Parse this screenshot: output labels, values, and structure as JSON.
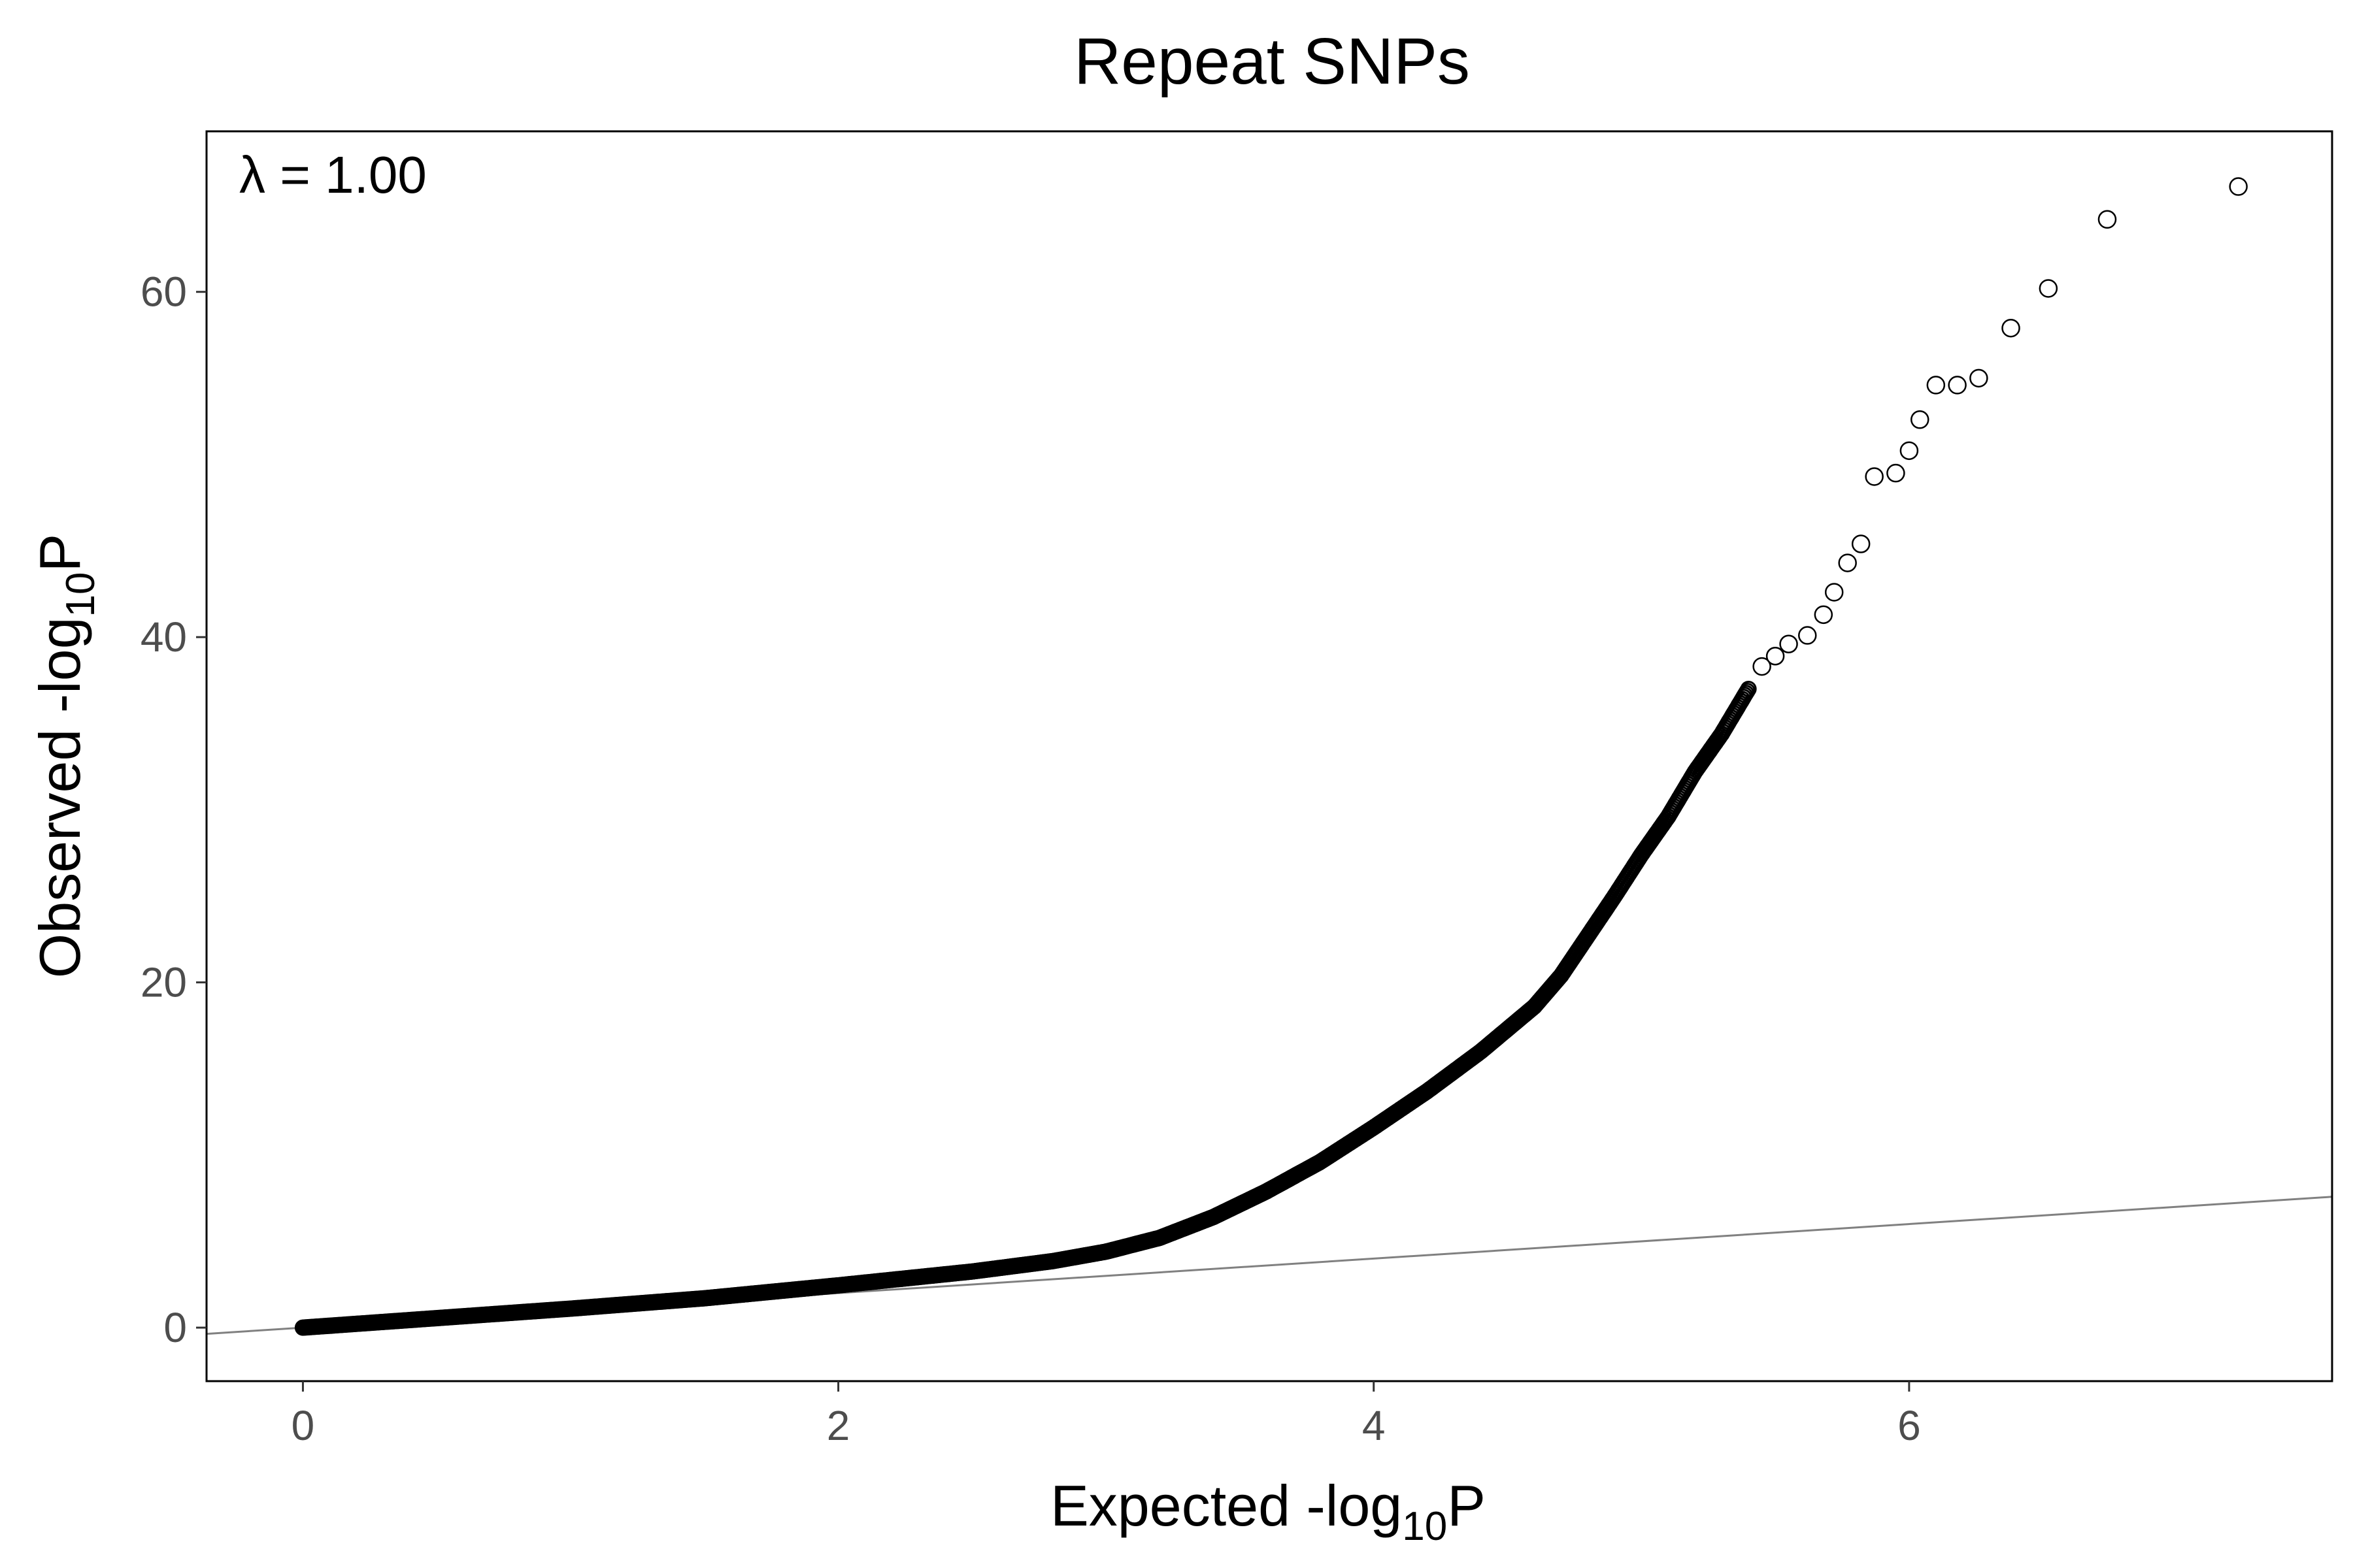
{
  "chart_data": {
    "type": "scatter",
    "title": "Repeat SNPs",
    "xlabel": {
      "pre": "Expected -log",
      "sub": "10",
      "post": "P"
    },
    "ylabel": {
      "pre": "Observed -log",
      "sub": "10",
      "post": "P"
    },
    "xlim": [
      -0.36,
      7.58
    ],
    "ylim": [
      -3.1,
      69.3
    ],
    "x_ticks": [
      0,
      2,
      4,
      6
    ],
    "x_tick_labels": [
      "0",
      "2",
      "4",
      "6"
    ],
    "y_ticks": [
      0,
      20,
      40,
      60
    ],
    "y_tick_labels": [
      "0",
      "20",
      "40",
      "60"
    ],
    "grid": false,
    "legend": "none",
    "annotation": "λ = 1.00",
    "reference_line": {
      "label": "y = x",
      "color": "#808080"
    },
    "point_style": {
      "shape": "open-circle",
      "color": "#000000"
    },
    "curve_points": [
      [
        0.0,
        0.0
      ],
      [
        0.5,
        0.55
      ],
      [
        1.0,
        1.1
      ],
      [
        1.5,
        1.7
      ],
      [
        2.0,
        2.45
      ],
      [
        2.5,
        3.25
      ],
      [
        2.8,
        3.85
      ],
      [
        3.0,
        4.4
      ],
      [
        3.2,
        5.2
      ],
      [
        3.4,
        6.4
      ],
      [
        3.6,
        7.9
      ],
      [
        3.8,
        9.6
      ],
      [
        4.0,
        11.6
      ],
      [
        4.2,
        13.7
      ],
      [
        4.4,
        16.0
      ],
      [
        4.6,
        18.6
      ],
      [
        4.7,
        20.4
      ],
      [
        4.8,
        22.7
      ],
      [
        4.9,
        25.0
      ],
      [
        5.0,
        27.4
      ],
      [
        5.1,
        29.6
      ],
      [
        5.2,
        32.2
      ],
      [
        5.3,
        34.4
      ],
      [
        5.4,
        37.0
      ]
    ],
    "tail_points": [
      [
        5.45,
        38.3
      ],
      [
        5.5,
        38.9
      ],
      [
        5.55,
        39.6
      ],
      [
        5.62,
        40.1
      ],
      [
        5.68,
        41.3
      ],
      [
        5.72,
        42.6
      ],
      [
        5.77,
        44.3
      ],
      [
        5.82,
        45.4
      ],
      [
        5.87,
        49.3
      ],
      [
        5.95,
        49.5
      ],
      [
        6.0,
        50.8
      ],
      [
        6.04,
        52.6
      ],
      [
        6.1,
        54.6
      ],
      [
        6.18,
        54.6
      ],
      [
        6.26,
        55.0
      ],
      [
        6.38,
        57.9
      ],
      [
        6.52,
        60.2
      ],
      [
        6.74,
        64.2
      ],
      [
        7.23,
        66.1
      ]
    ]
  }
}
